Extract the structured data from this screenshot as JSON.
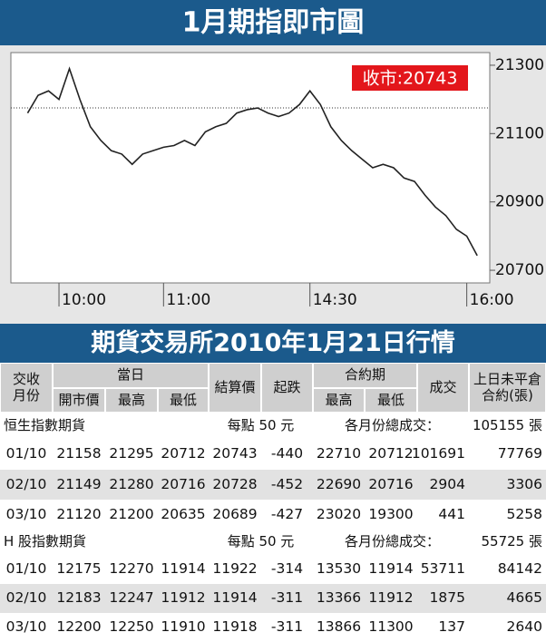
{
  "chart_data": {
    "type": "line",
    "title": "1月期指即市圖",
    "annotation": "收市:20743",
    "x": [
      0,
      1,
      2,
      3,
      4,
      5,
      6,
      7,
      8,
      9,
      10,
      11,
      12,
      13,
      14,
      15,
      16,
      17,
      18,
      19,
      20,
      21,
      22,
      23,
      24,
      25,
      26,
      27,
      28,
      29,
      30,
      31,
      32,
      33,
      34,
      35,
      36,
      37,
      38,
      39,
      40,
      41,
      42,
      43
    ],
    "series": [
      {
        "color": "#222222",
        "values": [
          21160,
          21212,
          21225,
          21200,
          21290,
          21200,
          21120,
          21080,
          21050,
          21040,
          21010,
          21040,
          21050,
          21060,
          21065,
          21080,
          21065,
          21105,
          21120,
          21130,
          21160,
          21170,
          21175,
          21160,
          21150,
          21160,
          21185,
          21225,
          21185,
          21120,
          21080,
          21050,
          21025,
          21000,
          21010,
          21000,
          20970,
          20960,
          20920,
          20885,
          20860,
          20820,
          20800,
          20743
        ]
      }
    ],
    "reference_line": 21175,
    "xlim": [
      -1.6,
      44.2
    ],
    "xticks": [
      {
        "value": 3,
        "label": "10:00"
      },
      {
        "value": 13,
        "label": "11:00"
      },
      {
        "value": 27,
        "label": "14:30"
      },
      {
        "value": 42,
        "label": "16:00"
      }
    ],
    "ylim": [
      20663,
      21337
    ],
    "yticks": [
      20700,
      20900,
      21100,
      21300
    ]
  },
  "table": {
    "title": "期貨交易所2010年1月21日行情",
    "header": {
      "month": "交收\n月份",
      "day": "當日",
      "day_cols": [
        "開市價",
        "最高",
        "最低"
      ],
      "settle": "結算價",
      "change": "起跌",
      "contract": "合約期",
      "contract_cols": [
        "最高",
        "最低"
      ],
      "volume": "成交",
      "oi": "上日未平倉\n合約(張)"
    },
    "sections": [
      {
        "name": "恒生指數期貨",
        "point": "每點 50 元",
        "total_label": "各月份總成交：",
        "total": "105155 張",
        "rows": [
          [
            "01/10",
            21158,
            21295,
            20712,
            20743,
            -440,
            22710,
            20712,
            101691,
            77769
          ],
          [
            "02/10",
            21149,
            21280,
            20716,
            20728,
            -452,
            22690,
            20716,
            2904,
            3306
          ],
          [
            "03/10",
            21120,
            21200,
            20635,
            20689,
            -427,
            23020,
            19300,
            441,
            5258
          ]
        ]
      },
      {
        "name": "H 股指數期貨",
        "point": "每點 50 元",
        "total_label": "各月份總成交：",
        "total": "55725 張",
        "rows": [
          [
            "01/10",
            12175,
            12270,
            11914,
            11922,
            -314,
            13530,
            11914,
            53711,
            84142
          ],
          [
            "02/10",
            12183,
            12247,
            11912,
            11914,
            -311,
            13366,
            11912,
            1875,
            4665
          ],
          [
            "03/10",
            12200,
            12250,
            11910,
            11918,
            -311,
            13866,
            11300,
            137,
            2640
          ]
        ]
      }
    ]
  }
}
